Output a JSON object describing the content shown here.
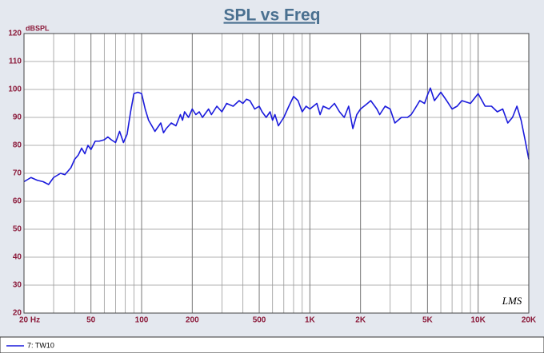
{
  "chart_data": {
    "type": "line",
    "title": "SPL vs Freq",
    "y_unit_label": "dBSPL",
    "watermark": "LMS",
    "xscale": "log",
    "grid": true,
    "xlim": [
      20,
      20000
    ],
    "ylim": [
      20,
      120
    ],
    "yticks": [
      20,
      30,
      40,
      50,
      60,
      70,
      80,
      90,
      100,
      110,
      120
    ],
    "xticks": [
      {
        "value": 20,
        "label": "20 Hz"
      },
      50,
      100,
      200,
      500,
      {
        "value": 1000,
        "label": "1K"
      },
      {
        "value": 2000,
        "label": "2K"
      },
      {
        "value": 5000,
        "label": "5K"
      },
      {
        "value": 10000,
        "label": "10K"
      },
      {
        "value": 20000,
        "label": "20K"
      }
    ],
    "xminor": [
      30,
      40,
      60,
      70,
      80,
      90,
      300,
      400,
      600,
      700,
      800,
      900,
      3000,
      4000,
      6000,
      7000,
      8000,
      9000
    ],
    "x": [
      20,
      22,
      24,
      26,
      28,
      30,
      33,
      35,
      38,
      40,
      42,
      44,
      46,
      48,
      50,
      53,
      56,
      60,
      63,
      66,
      70,
      74,
      78,
      82,
      86,
      90,
      95,
      100,
      105,
      110,
      115,
      120,
      130,
      135,
      140,
      150,
      160,
      170,
      175,
      180,
      190,
      200,
      210,
      220,
      230,
      250,
      260,
      280,
      300,
      320,
      350,
      380,
      400,
      420,
      440,
      470,
      500,
      520,
      550,
      580,
      600,
      620,
      650,
      700,
      750,
      800,
      850,
      900,
      950,
      1000,
      1100,
      1150,
      1200,
      1300,
      1400,
      1500,
      1600,
      1700,
      1800,
      1900,
      2000,
      2200,
      2300,
      2500,
      2600,
      2800,
      3000,
      3200,
      3500,
      3800,
      4000,
      4200,
      4500,
      4800,
      5000,
      5200,
      5500,
      6000,
      6500,
      7000,
      7500,
      8000,
      9000,
      10000,
      11000,
      12000,
      13000,
      14000,
      15000,
      16000,
      17000,
      18000,
      19000,
      20000
    ],
    "series": [
      {
        "name": "7: TW10",
        "color": "#1a1adc",
        "values": [
          67,
          68.5,
          67.5,
          67,
          66,
          68.5,
          70,
          69.5,
          72,
          75,
          76.5,
          79,
          77,
          80,
          78.5,
          81.5,
          81.5,
          82,
          83,
          82,
          81,
          85,
          81,
          84,
          92,
          98.5,
          99,
          98.5,
          93,
          89,
          87,
          85,
          88,
          84.5,
          86,
          88,
          87,
          91,
          89,
          92,
          90,
          93,
          91,
          92,
          90,
          93,
          91,
          94,
          92,
          95,
          94,
          96,
          95,
          96.5,
          96,
          93,
          94,
          92,
          90,
          92,
          89,
          91,
          87,
          90,
          94,
          97.5,
          96,
          92,
          94,
          93,
          95,
          91,
          94,
          93,
          95,
          92,
          90,
          94,
          86,
          91,
          93,
          95,
          96,
          93,
          91,
          94,
          93,
          88,
          90,
          90,
          91,
          93,
          96,
          95,
          98,
          100.5,
          96,
          99,
          96,
          93,
          94,
          96,
          95,
          98.5,
          94,
          94,
          92,
          93,
          88,
          90,
          94,
          89,
          82,
          75
        ]
      }
    ]
  }
}
